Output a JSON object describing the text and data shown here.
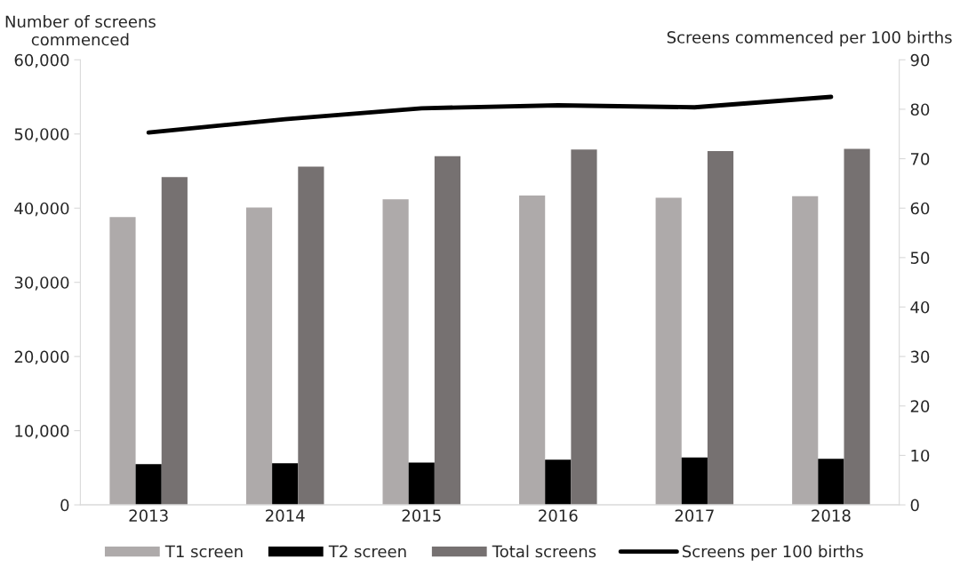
{
  "chart_data": {
    "type": "bar",
    "ylabel": "Number of screens\ncommenced",
    "y2label": "Screens commenced per 100 births",
    "categories": [
      "2013",
      "2014",
      "2015",
      "2016",
      "2017",
      "2018"
    ],
    "series": [
      {
        "name": "T1 screen",
        "color": "#aeaaaa",
        "values": [
          38800,
          40100,
          41200,
          41700,
          41400,
          41600
        ]
      },
      {
        "name": "T2 screen",
        "color": "#000000",
        "values": [
          5500,
          5600,
          5700,
          6100,
          6400,
          6200
        ]
      },
      {
        "name": "Total screens",
        "color": "#767171",
        "values": [
          44200,
          45600,
          47000,
          47900,
          47700,
          48000
        ]
      },
      {
        "name": "Screens per 100 births",
        "type": "line",
        "axis": "y2",
        "color": "#000000",
        "values": [
          75.3,
          78.0,
          80.2,
          80.8,
          80.4,
          82.5
        ]
      }
    ],
    "ylim": [
      0,
      60000
    ],
    "yticks": [
      0,
      {
        "value": 10000,
        "label": "10,000"
      },
      {
        "value": 20000,
        "label": "20,000"
      },
      {
        "value": 30000,
        "label": "30,000"
      },
      {
        "value": 40000,
        "label": "40,000"
      },
      {
        "value": 50000,
        "label": "50,000"
      },
      {
        "value": 60000,
        "label": "60,000"
      }
    ],
    "y2lim": [
      0,
      90
    ],
    "y2ticks": [
      0,
      10,
      20,
      30,
      40,
      50,
      60,
      70,
      80,
      90
    ],
    "legend": "bottom",
    "grid": false,
    "marker": "none",
    "line_style": "solid"
  }
}
